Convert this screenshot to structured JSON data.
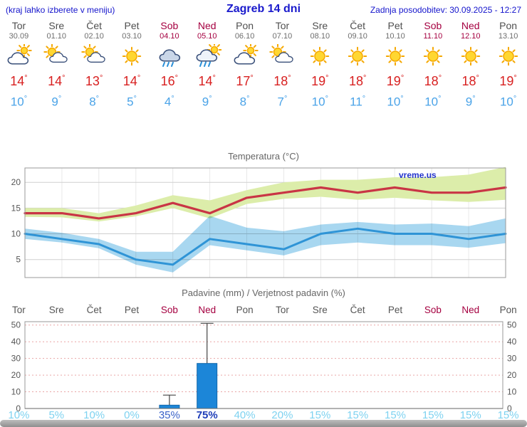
{
  "header": {
    "left_note": "(kraj lahko izberete v meniju)",
    "title": "Zagreb 14 dni",
    "updated": "Zadnja posodobitev: 30.09.2025 - 12:27"
  },
  "deg": "°",
  "colors": {
    "header_blue": "#1414cc",
    "weekend_red": "#a50040",
    "high_temp_red": "#d82020",
    "low_temp_blue": "#4aa3e8",
    "probability_cyan": "#7ed2f0",
    "probability_strong_blue": "#1e3db8"
  },
  "days": [
    {
      "name": "Tor",
      "date": "30.09",
      "weekend": false,
      "icon": "mostly-cloudy",
      "high": "14",
      "low": "10"
    },
    {
      "name": "Sre",
      "date": "01.10",
      "weekend": false,
      "icon": "partly-cloudy",
      "high": "14",
      "low": "9"
    },
    {
      "name": "Čet",
      "date": "02.10",
      "weekend": false,
      "icon": "partly-cloudy",
      "high": "13",
      "low": "8"
    },
    {
      "name": "Pet",
      "date": "03.10",
      "weekend": false,
      "icon": "sunny",
      "high": "14",
      "low": "5"
    },
    {
      "name": "Sob",
      "date": "04.10",
      "weekend": true,
      "icon": "rain",
      "high": "16",
      "low": "4"
    },
    {
      "name": "Ned",
      "date": "05.10",
      "weekend": true,
      "icon": "rain-sun",
      "high": "14",
      "low": "9"
    },
    {
      "name": "Pon",
      "date": "06.10",
      "weekend": false,
      "icon": "mostly-cloudy",
      "high": "17",
      "low": "8"
    },
    {
      "name": "Tor",
      "date": "07.10",
      "weekend": false,
      "icon": "partly-cloudy",
      "high": "18",
      "low": "7"
    },
    {
      "name": "Sre",
      "date": "08.10",
      "weekend": false,
      "icon": "sunny",
      "high": "19",
      "low": "10"
    },
    {
      "name": "Čet",
      "date": "09.10",
      "weekend": false,
      "icon": "sunny",
      "high": "18",
      "low": "11"
    },
    {
      "name": "Pet",
      "date": "10.10",
      "weekend": false,
      "icon": "sunny",
      "high": "19",
      "low": "10"
    },
    {
      "name": "Sob",
      "date": "11.10",
      "weekend": true,
      "icon": "sunny",
      "high": "18",
      "low": "10"
    },
    {
      "name": "Ned",
      "date": "12.10",
      "weekend": true,
      "icon": "sunny",
      "high": "18",
      "low": "9"
    },
    {
      "name": "Pon",
      "date": "13.10",
      "weekend": false,
      "icon": "sunny",
      "high": "19",
      "low": "10"
    }
  ],
  "chart_data": [
    {
      "type": "line",
      "title": "Temperatura (°C)",
      "watermark": "vreme.us",
      "ylim": [
        1.5,
        22.8
      ],
      "yticks": [
        5,
        10,
        15,
        20
      ],
      "grid": true,
      "legend": "none",
      "band_colors": {
        "max": "#dcedaa",
        "min": "#9fd3ee"
      },
      "series": [
        {
          "name": "max-temp",
          "color": "#c93545",
          "values": [
            14,
            14,
            13,
            14,
            16,
            14,
            17,
            18,
            19,
            18,
            19,
            18,
            18,
            19
          ]
        },
        {
          "name": "max-range-upper",
          "values": [
            15,
            15,
            14,
            15.5,
            17.5,
            16.5,
            18.5,
            20,
            20.5,
            20.5,
            21,
            21,
            21.5,
            23
          ]
        },
        {
          "name": "max-range-lower",
          "values": [
            13.3,
            13.2,
            12.4,
            13.4,
            15,
            13,
            15.8,
            16.8,
            17.2,
            16.6,
            17,
            16.5,
            16.2,
            16.6
          ]
        },
        {
          "name": "min-temp",
          "color": "#2f94d6",
          "values": [
            10,
            9,
            8,
            5,
            4,
            9,
            8,
            7,
            10,
            11,
            10,
            10,
            9,
            10
          ]
        },
        {
          "name": "min-range-upper",
          "values": [
            11,
            10.2,
            9,
            6.5,
            6.5,
            13.5,
            11.2,
            10.5,
            11.8,
            12.3,
            11.8,
            12,
            11.5,
            13
          ]
        },
        {
          "name": "min-range-lower",
          "values": [
            9,
            8.3,
            7.2,
            4,
            2.5,
            7.8,
            6.8,
            5.8,
            7.8,
            8.3,
            7.8,
            7.8,
            7.3,
            8.2
          ]
        }
      ]
    },
    {
      "type": "bar",
      "title": "Padavine (mm) / Verjetnost padavin (%)",
      "ylim": [
        0,
        52
      ],
      "yticks": [
        0,
        10,
        20,
        30,
        40,
        50
      ],
      "bar_color": "#1c86d8",
      "categories": [
        "Tor",
        "Sre",
        "Čet",
        "Pet",
        "Sob",
        "Ned",
        "Pon",
        "Tor",
        "Sre",
        "Čet",
        "Pet",
        "Sob",
        "Ned",
        "Pon"
      ],
      "values_mm": [
        0,
        0,
        0,
        0,
        2,
        27,
        0,
        0,
        0,
        0,
        0,
        0,
        0,
        0
      ],
      "whisker_low": [
        0,
        0,
        0,
        0,
        0.5,
        10,
        0,
        0,
        0,
        0,
        0,
        0,
        0,
        0
      ],
      "whisker_high": [
        0,
        0,
        0,
        0,
        8,
        51,
        0,
        0,
        0,
        0,
        0,
        0,
        0,
        0
      ],
      "probability": [
        {
          "label": "10%",
          "emph": 0
        },
        {
          "label": "5%",
          "emph": 0
        },
        {
          "label": "10%",
          "emph": 0
        },
        {
          "label": "0%",
          "emph": 0
        },
        {
          "label": "35%",
          "emph": 1
        },
        {
          "label": "75%",
          "emph": 2
        },
        {
          "label": "40%",
          "emph": 0
        },
        {
          "label": "20%",
          "emph": 0
        },
        {
          "label": "15%",
          "emph": 0
        },
        {
          "label": "15%",
          "emph": 0
        },
        {
          "label": "15%",
          "emph": 0
        },
        {
          "label": "15%",
          "emph": 0
        },
        {
          "label": "15%",
          "emph": 0
        },
        {
          "label": "15%",
          "emph": 0
        }
      ]
    }
  ]
}
